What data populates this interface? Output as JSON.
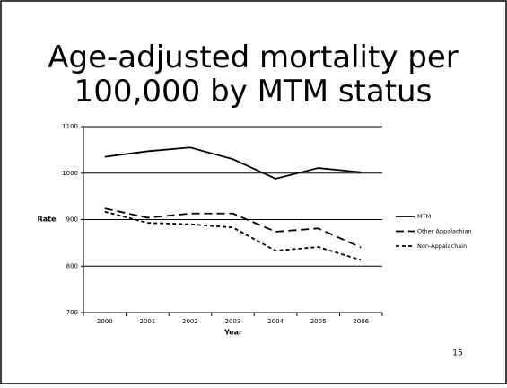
{
  "chart_data": {
    "type": "line",
    "title": "Age-adjusted mortality per 100,000 by MTM status",
    "x_label": "Year",
    "y_label": "Rate",
    "categories": [
      "2000",
      "2001",
      "2002",
      "2003",
      "2004",
      "2005",
      "2006"
    ],
    "series": [
      {
        "name": "MTM",
        "color": "#000000",
        "line_style": "solid",
        "values": [
          1035,
          1047,
          1055,
          1030,
          988,
          1011,
          1002
        ]
      },
      {
        "name": "Other Appalachian",
        "color": "#000000",
        "line_style": "dashed",
        "values": [
          924,
          904,
          913,
          913,
          874,
          881,
          840
        ]
      },
      {
        "name": "Non-Appalachain",
        "color": "#000000",
        "line_style": "short-dashed",
        "values": [
          917,
          893,
          890,
          883,
          833,
          841,
          813
        ]
      }
    ],
    "ylim": [
      700,
      1100
    ],
    "yticks": [
      700,
      800,
      900,
      1000,
      1100
    ],
    "grid": true,
    "legend": "right"
  },
  "page_number": "15"
}
